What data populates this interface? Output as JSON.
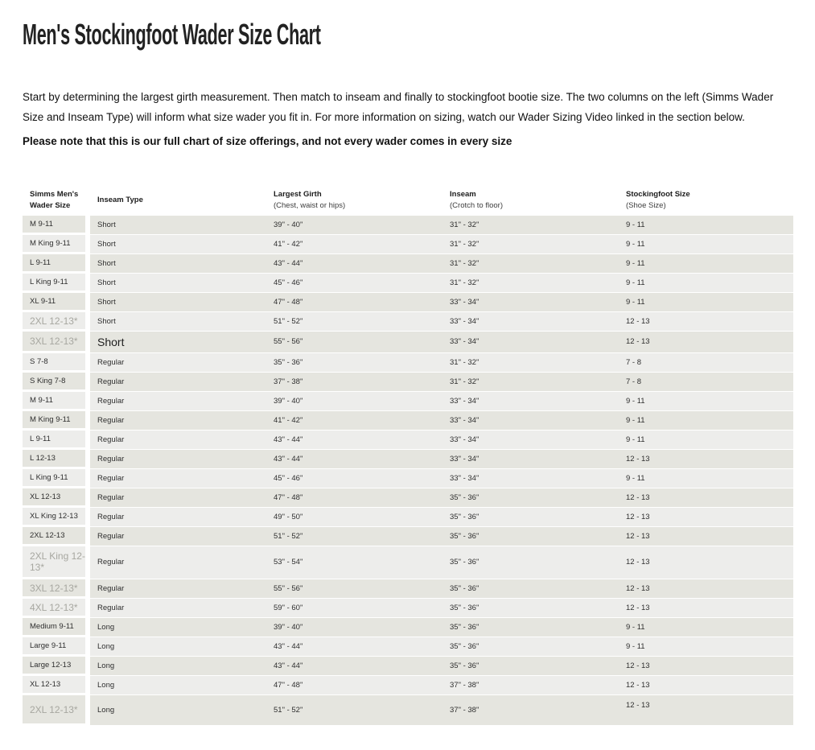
{
  "page": {
    "title": "Men's Stockingfoot Wader Size Chart",
    "intro": "Start by determining the largest girth measurement. Then match to inseam and finally to stockingfoot bootie size. The two columns on the left (Simms Wader Size and Inseam Type) will inform what size wader you fit in. For more information on sizing, watch our Wader Sizing Video linked in the section below.",
    "note": "Please note that this is our full chart of size offerings, and not every wader comes in every size"
  },
  "colors": {
    "row_dark": "#e5e5df",
    "row_light": "#ededeb",
    "muted_label_text": "#a7a7a0",
    "body_text": "#2f2f2f"
  },
  "table": {
    "columns": [
      {
        "label": "Simms Men's",
        "label2": "Wader Size",
        "sub": ""
      },
      {
        "label": "Inseam Type",
        "sub": ""
      },
      {
        "label": "Largest Girth",
        "sub": "(Chest, waist or hips)"
      },
      {
        "label": "Inseam",
        "sub": "(Crotch to floor)"
      },
      {
        "label": "Stockingfoot Size",
        "sub": "(Shoe Size)"
      }
    ],
    "rows": [
      {
        "size": "M 9-11",
        "type": "Short",
        "girth": "39\" - 40\"",
        "inseam": "31\" - 32\"",
        "boot": "9 - 11"
      },
      {
        "size": "M King 9-11",
        "type": "Short",
        "girth": "41\" - 42\"",
        "inseam": "31\" - 32\"",
        "boot": "9 - 11"
      },
      {
        "size": "L 9-11",
        "type": "Short",
        "girth": "43\" - 44\"",
        "inseam": "31\" - 32\"",
        "boot": "9 - 11"
      },
      {
        "size": "L King 9-11",
        "type": "Short",
        "girth": "45\" - 46\"",
        "inseam": "31\" - 32\"",
        "boot": "9 - 11"
      },
      {
        "size": "XL 9-11",
        "type": "Short",
        "girth": "47\" - 48\"",
        "inseam": "33\" - 34\"",
        "boot": "9 - 11"
      },
      {
        "size": "2XL 12-13*",
        "type": "Short",
        "girth": "51\" - 52\"",
        "inseam": "33\" - 34\"",
        "boot": "12 - 13",
        "muted": true
      },
      {
        "size": "3XL 12-13*",
        "type": "Short",
        "girth": "55\" - 56\"",
        "inseam": "33\" - 34\"",
        "boot": "12 - 13",
        "muted": true,
        "large_type": true,
        "h": "md"
      },
      {
        "size": "S 7-8",
        "type": "Regular",
        "girth": "35\" - 36\"",
        "inseam": "31\" - 32\"",
        "boot": "7 - 8"
      },
      {
        "size": "S King 7-8",
        "type": "Regular",
        "girth": "37\" - 38\"",
        "inseam": "31\" - 32\"",
        "boot": "7 - 8"
      },
      {
        "size": "M 9-11",
        "type": "Regular",
        "girth": "39\" - 40\"",
        "inseam": "33\" - 34\"",
        "boot": "9 - 11"
      },
      {
        "size": "M King 9-11",
        "type": "Regular",
        "girth": "41\" - 42\"",
        "inseam": "33\" - 34\"",
        "boot": "9 - 11"
      },
      {
        "size": "L 9-11",
        "type": "Regular",
        "girth": "43\" - 44\"",
        "inseam": "33\" - 34\"",
        "boot": "9 - 11"
      },
      {
        "size": "L 12-13",
        "type": "Regular",
        "girth": "43\" - 44\"",
        "inseam": "33\" - 34\"",
        "boot": "12 - 13"
      },
      {
        "size": "L King 9-11",
        "type": "Regular",
        "girth": "45\" - 46\"",
        "inseam": "33\" - 34\"",
        "boot": "9 - 11"
      },
      {
        "size": "XL 12-13",
        "type": "Regular",
        "girth": "47\" - 48\"",
        "inseam": "35\" - 36\"",
        "boot": "12 - 13"
      },
      {
        "size": "XL King 12-13",
        "type": "Regular",
        "girth": "49\" - 50\"",
        "inseam": "35\" - 36\"",
        "boot": "12 - 13"
      },
      {
        "size": "2XL 12-13",
        "type": "Regular",
        "girth": "51\" - 52\"",
        "inseam": "35\" - 36\"",
        "boot": "12 - 13"
      },
      {
        "size": "2XL King 12-13*",
        "type": "Regular",
        "girth": "53\" - 54\"",
        "inseam": "35\" - 36\"",
        "boot": "12 - 13",
        "muted": true,
        "h": "tall"
      },
      {
        "size": "3XL 12-13*",
        "type": "Regular",
        "girth": "55\" - 56\"",
        "inseam": "35\" - 36\"",
        "boot": "12 - 13",
        "muted": true
      },
      {
        "size": "4XL 12-13*",
        "type": "Regular",
        "girth": "59\" - 60\"",
        "inseam": "35\" - 36\"",
        "boot": "12 - 13",
        "muted": true
      },
      {
        "size": "Medium 9-11",
        "type": "Long",
        "girth": "39\" - 40\"",
        "inseam": "35\" - 36\"",
        "boot": "9 - 11"
      },
      {
        "size": "Large 9-11",
        "type": "Long",
        "girth": "43\" - 44\"",
        "inseam": "35\" - 36\"",
        "boot": "9 - 11"
      },
      {
        "size": "Large 12-13",
        "type": "Long",
        "girth": "43\" - 44\"",
        "inseam": "35\" - 36\"",
        "boot": "12 - 13"
      },
      {
        "size": "XL 12-13",
        "type": "Long",
        "girth": "47\" - 48\"",
        "inseam": "37\" - 38\"",
        "boot": "12 - 13"
      },
      {
        "size": "2XL 12-13*",
        "type": "Long",
        "girth": "51\" - 52\"",
        "inseam": "37\" - 38\"",
        "boot": "12 - 13",
        "muted": true,
        "h": "last",
        "boot_raised": true
      }
    ]
  }
}
